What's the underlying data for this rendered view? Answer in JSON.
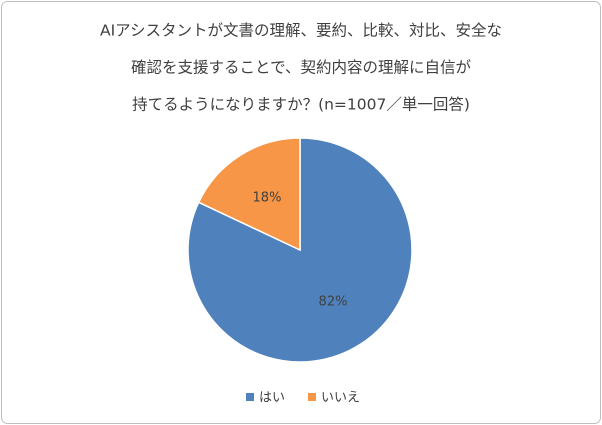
{
  "chart_data": {
    "type": "pie",
    "title": [
      "AIアシスタントが文書の理解、要約、比較、対比、安全な",
      "確認を支援することで、契約内容の理解に自信が",
      "持てるようになりますか？(n=1007／単一回答)"
    ],
    "categories": [
      "はい",
      "いいえ"
    ],
    "values": [
      82,
      18
    ],
    "value_labels": [
      "82%",
      "18%"
    ],
    "colors": [
      "#4f81bd",
      "#f79646"
    ]
  }
}
